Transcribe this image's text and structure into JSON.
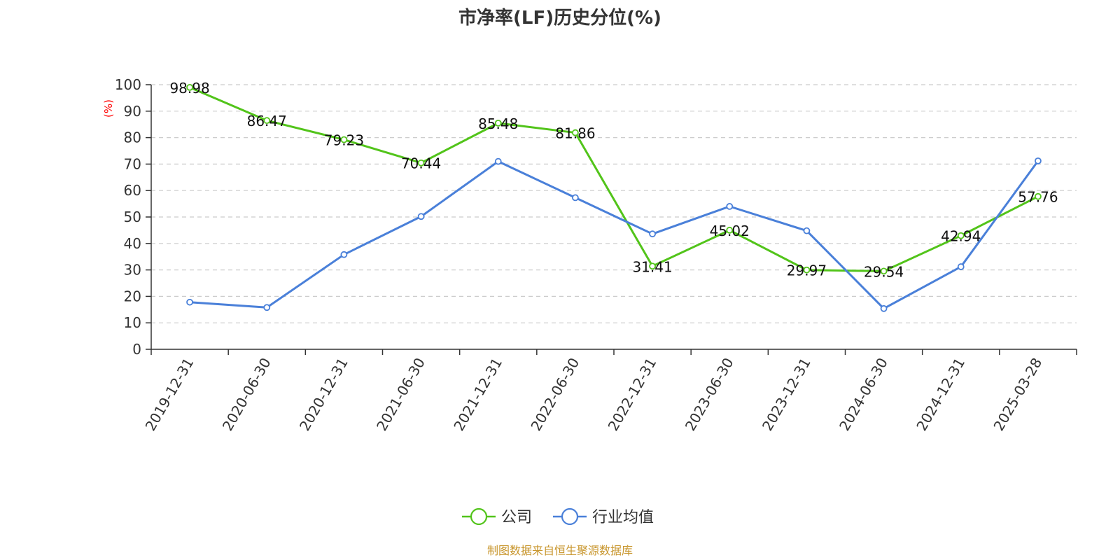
{
  "chart_data": {
    "type": "line",
    "title": "市净率(LF)历史分位(%)",
    "ylabel": "(%)",
    "xlabel": "",
    "ylim": [
      0,
      100
    ],
    "yticks": [
      0,
      10,
      20,
      30,
      40,
      50,
      60,
      70,
      80,
      90,
      100
    ],
    "grid": true,
    "legend_position": "bottom",
    "categories": [
      "2019-12-31",
      "2020-06-30",
      "2020-12-31",
      "2021-06-30",
      "2021-12-31",
      "2022-06-30",
      "2022-12-31",
      "2023-06-30",
      "2023-12-31",
      "2024-06-30",
      "2024-12-31",
      "2025-03-28"
    ],
    "series": [
      {
        "name": "公司",
        "color": "#52c41a",
        "values": [
          98.98,
          86.47,
          79.23,
          70.44,
          85.48,
          81.86,
          31.41,
          45.02,
          29.97,
          29.54,
          42.94,
          57.76
        ],
        "labels": [
          "98.98",
          "86.47",
          "79.23",
          "70.44",
          "85.48",
          "81.86",
          "31.41",
          "45.02",
          "29.97",
          "29.54",
          "42.94",
          "57.76"
        ]
      },
      {
        "name": "行业均值",
        "color": "#4a80d9",
        "values": [
          17.8,
          15.8,
          35.8,
          50.2,
          71.0,
          57.3,
          43.6,
          54.0,
          44.8,
          15.4,
          31.2,
          71.2
        ]
      }
    ],
    "source": "制图数据来自恒生聚源数据库"
  }
}
